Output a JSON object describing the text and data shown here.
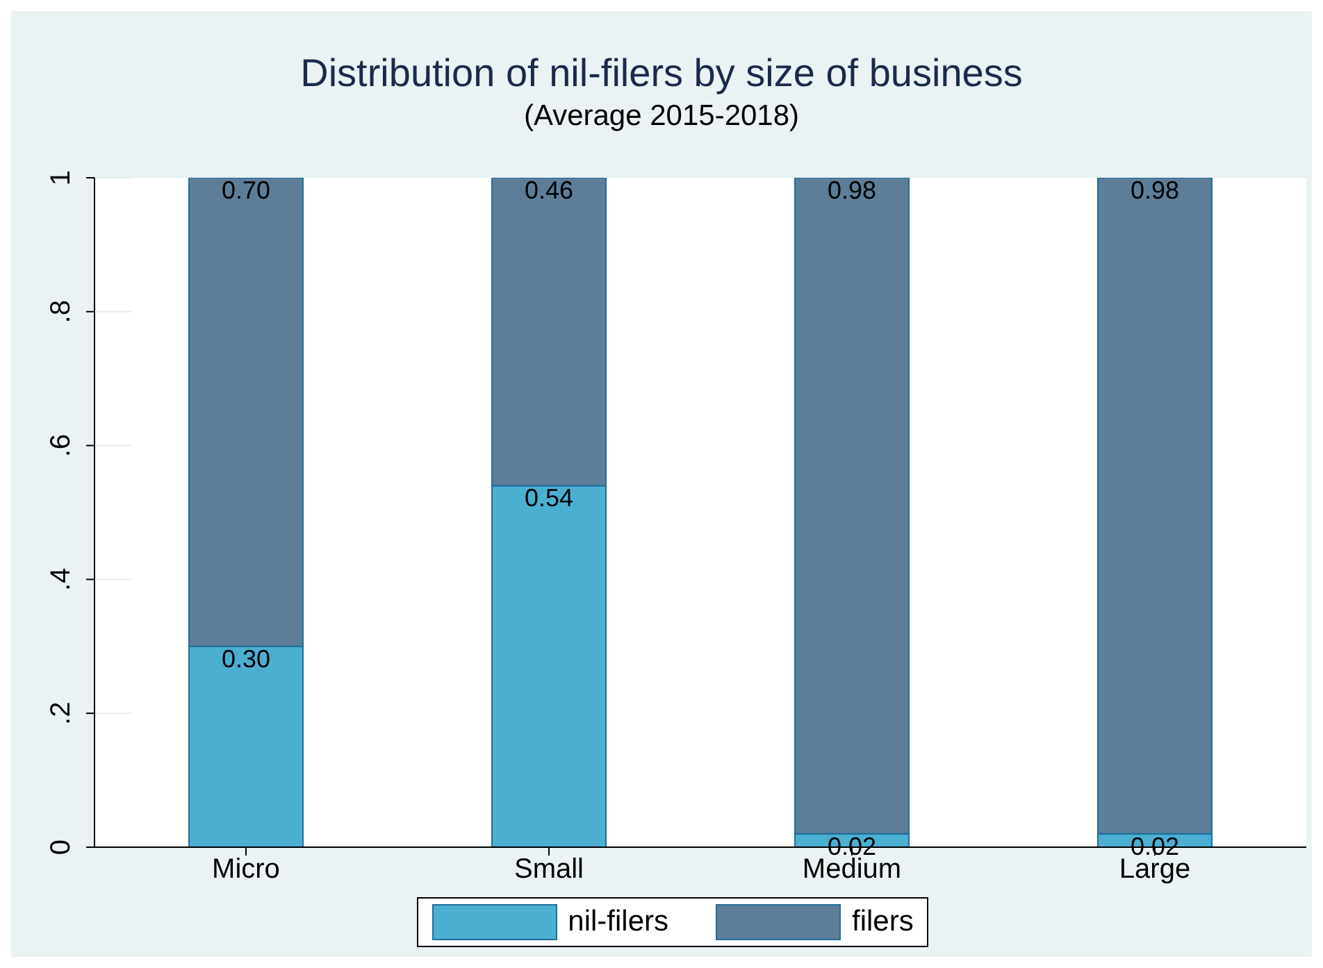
{
  "chart_data": {
    "type": "bar",
    "title": "Distribution of nil-filers by size of business",
    "subtitle": "(Average 2015-2018)",
    "categories": [
      "Micro",
      "Small",
      "Medium",
      "Large"
    ],
    "stacked": true,
    "series": [
      {
        "name": "nil-filers",
        "color": "#4bafd2",
        "values": [
          0.3,
          0.54,
          0.02,
          0.02
        ],
        "value_labels": [
          "0.30",
          "0.54",
          "0.02",
          "0.02"
        ]
      },
      {
        "name": "filers",
        "color": "#5e7d99",
        "values": [
          0.7,
          0.46,
          0.98,
          0.98
        ],
        "value_labels": [
          "0.70",
          "0.46",
          "0.98",
          "0.98"
        ]
      }
    ],
    "ylim": [
      0,
      1
    ],
    "yticks": [
      0,
      {
        "value": 0.2,
        "label": ".2"
      },
      {
        "value": 0.4,
        "label": ".4"
      },
      {
        "value": 0.6,
        "label": ".6"
      },
      {
        "value": 0.8,
        "label": ".8"
      },
      1
    ],
    "grid": "y",
    "legend": "bottom"
  }
}
